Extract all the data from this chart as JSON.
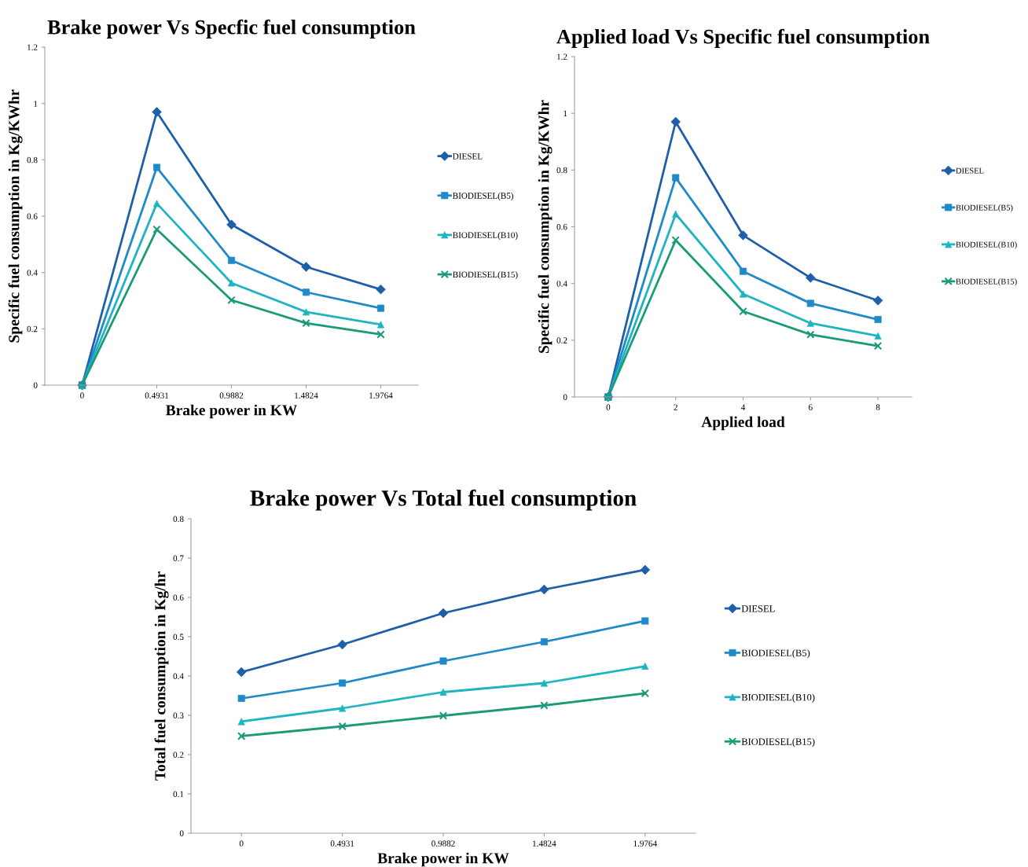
{
  "chart_data": [
    {
      "type": "line",
      "title": "Brake power Vs Specfic fuel consumption",
      "xlabel": "Brake power in KW",
      "ylabel": "Specific fuel consumption in Kg/KWhr",
      "categories": [
        "0",
        "0.4931",
        "0.9882",
        "1.4824",
        "1.9764"
      ],
      "series": [
        {
          "name": "DIESEL",
          "color": "#1f5fa8",
          "marker": "diamond",
          "values": [
            0,
            0.97,
            0.57,
            0.42,
            0.34
          ]
        },
        {
          "name": "BIODIESEL(B5)",
          "color": "#1f8ac8",
          "marker": "square",
          "values": [
            0,
            0.773,
            0.443,
            0.33,
            0.273
          ]
        },
        {
          "name": "BIODIESEL(B10)",
          "color": "#1fb5c0",
          "marker": "triangle",
          "values": [
            0,
            0.645,
            0.363,
            0.26,
            0.215
          ]
        },
        {
          "name": "BIODIESEL(B15)",
          "color": "#1a9a78",
          "marker": "cross",
          "values": [
            0,
            0.553,
            0.302,
            0.22,
            0.18
          ]
        }
      ],
      "ylim": [
        0,
        1.2
      ],
      "yticks": [
        0,
        0.2,
        0.4,
        0.6,
        0.8,
        1,
        1.2
      ],
      "grid": false,
      "legend": "right",
      "line_style": "solid"
    },
    {
      "type": "line",
      "title": "Applied load Vs Specific fuel consumption",
      "xlabel": "Applied load",
      "ylabel": "Specific fuel consumption in Kg/KWhr",
      "categories": [
        "0",
        "2",
        "4",
        "6",
        "8"
      ],
      "series": [
        {
          "name": "DIESEL",
          "color": "#1f5fa8",
          "marker": "diamond",
          "values": [
            0,
            0.97,
            0.57,
            0.42,
            0.34
          ]
        },
        {
          "name": "BIODIESEL(B5)",
          "color": "#1f8ac8",
          "marker": "square",
          "values": [
            0,
            0.773,
            0.443,
            0.33,
            0.273
          ]
        },
        {
          "name": "BIODIESEL(B10)",
          "color": "#1fb5c0",
          "marker": "triangle",
          "values": [
            0,
            0.645,
            0.363,
            0.26,
            0.215
          ]
        },
        {
          "name": "BIODIESEL(B15)",
          "color": "#1a9a78",
          "marker": "cross",
          "values": [
            0,
            0.553,
            0.302,
            0.22,
            0.18
          ]
        }
      ],
      "ylim": [
        0,
        1.2
      ],
      "yticks": [
        0,
        0.2,
        0.4,
        0.6,
        0.8,
        1,
        1.2
      ],
      "grid": false,
      "legend": "right",
      "line_style": "solid"
    },
    {
      "type": "line",
      "title": "Brake power Vs Total fuel consumption",
      "xlabel": "Brake power in KW",
      "ylabel": "Total fuel consumption in Kg/hr",
      "categories": [
        "0",
        "0.4931",
        "0.9882",
        "1.4824",
        "1.9764"
      ],
      "series": [
        {
          "name": "DIESEL",
          "color": "#1f5fa8",
          "marker": "diamond",
          "values": [
            0.41,
            0.48,
            0.56,
            0.62,
            0.67
          ]
        },
        {
          "name": "BIODIESEL(B5)",
          "color": "#1f8ac8",
          "marker": "square",
          "values": [
            0.343,
            0.382,
            0.438,
            0.487,
            0.54
          ]
        },
        {
          "name": "BIODIESEL(B10)",
          "color": "#1fb5c0",
          "marker": "triangle",
          "values": [
            0.284,
            0.318,
            0.359,
            0.382,
            0.425
          ]
        },
        {
          "name": "BIODIESEL(B15)",
          "color": "#1a9a78",
          "marker": "cross",
          "values": [
            0.247,
            0.272,
            0.299,
            0.325,
            0.356
          ]
        }
      ],
      "ylim": [
        0,
        0.8
      ],
      "yticks": [
        0,
        0.1,
        0.2,
        0.3,
        0.4,
        0.5,
        0.6,
        0.7,
        0.8
      ],
      "grid": false,
      "legend": "right",
      "line_style": "solid"
    }
  ]
}
